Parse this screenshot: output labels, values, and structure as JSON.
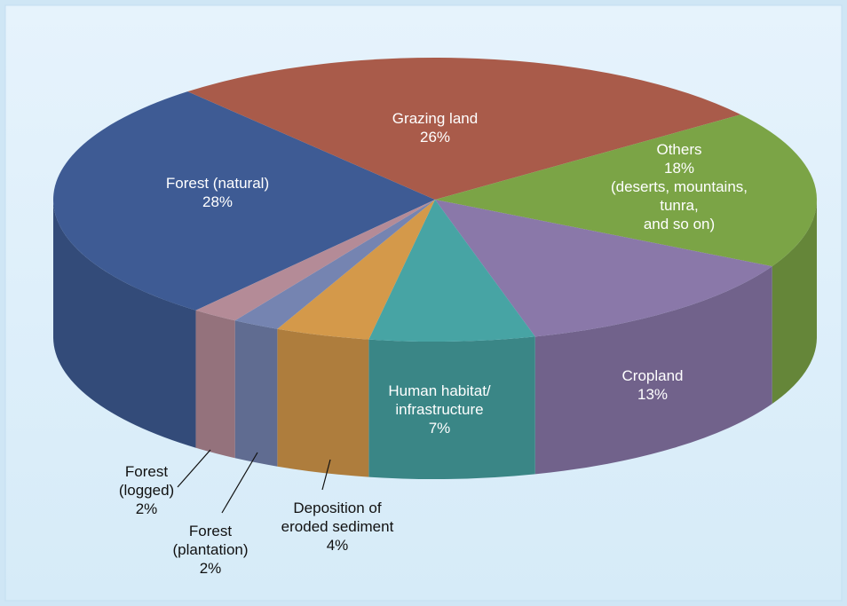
{
  "chart_data": {
    "type": "pie",
    "categories": [
      "Forest (natural)",
      "Grazing land",
      "Others",
      "Cropland",
      "Human habitat/\ninfrastructure",
      "Deposition of\neroded sediment",
      "Forest\n(plantation)",
      "Forest\n(logged)"
    ],
    "values": [
      28,
      26,
      18,
      13,
      7,
      4,
      2,
      2
    ],
    "value_labels": [
      "28%",
      "26%",
      "18%",
      "13%",
      "7%",
      "4%",
      "2%",
      "2%"
    ],
    "colors": [
      "#3e5b94",
      "#a95b4a",
      "#7ba446",
      "#8a78a9",
      "#47a4a4",
      "#d4994a",
      "#7584b1",
      "#b48b97"
    ],
    "annotations": [
      {
        "slice": 2,
        "text": "(deserts, mountains, tunra,\nand so on)"
      }
    ]
  }
}
